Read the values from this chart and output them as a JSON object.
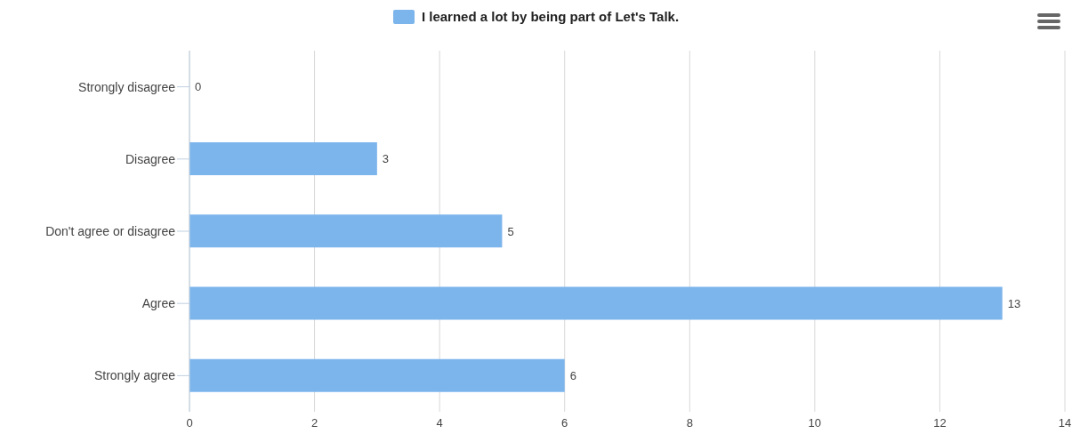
{
  "chart_data": {
    "type": "bar",
    "orientation": "horizontal",
    "categories": [
      "Strongly disagree",
      "Disagree",
      "Don't agree or disagree",
      "Agree",
      "Strongly agree"
    ],
    "series": [
      {
        "name": "I learned a lot by being part of Let's Talk.",
        "color": "#7cb5ec",
        "values": [
          0,
          3,
          5,
          13,
          6
        ]
      }
    ],
    "xlim": [
      0,
      14
    ],
    "xticks": [
      0,
      2,
      4,
      6,
      8,
      10,
      12,
      14
    ],
    "grid": "x",
    "legend": "top",
    "data_labels": true
  }
}
